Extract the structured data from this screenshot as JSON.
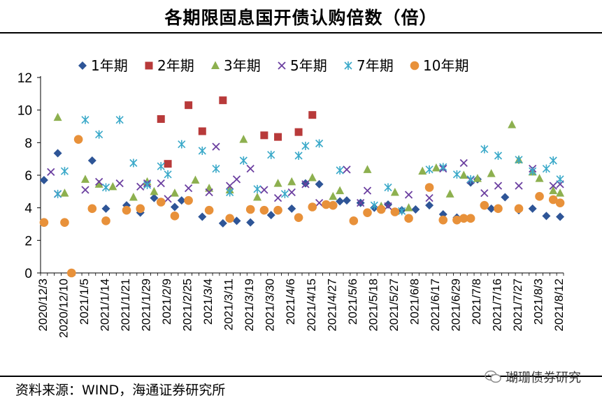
{
  "title": "各期限固息国开债认购倍数（倍）",
  "source": "资料来源：WIND，海通证券研究所",
  "watermark": "瑚珊债券研究",
  "chart_data": {
    "type": "scatter",
    "title": "各期限固息国开债认购倍数（倍）",
    "ylim": [
      0,
      12
    ],
    "yticks": [
      0,
      2,
      4,
      6,
      8,
      10,
      12
    ],
    "x_count": 76,
    "xtick_labels": [
      "2020/12/3",
      "2020/12/10",
      "2021/1/5",
      "2021/1/14",
      "2021/1/21",
      "2021/1/29",
      "2021/2/9",
      "2021/2/25",
      "2021/3/4",
      "2021/3/11",
      "2021/3/19",
      "2021/3/30",
      "2021/4/6",
      "2021/4/15",
      "2021/4/27",
      "2021/5/6",
      "2021/5/18",
      "2021/5/27",
      "2021/6/8",
      "2021/6/17",
      "2021/6/29",
      "2021/7/8",
      "2021/7/16",
      "2021/7/27",
      "2021/8/3",
      "2021/8/12"
    ],
    "legend_position": "top",
    "series": [
      {
        "name": "1年期",
        "marker": "diamond",
        "color": "#2E5597",
        "points": [
          [
            0,
            5.7
          ],
          [
            2,
            7.35
          ],
          [
            7,
            6.9
          ],
          [
            9,
            3.95
          ],
          [
            12,
            4.15
          ],
          [
            14,
            3.7
          ],
          [
            16,
            4.6
          ],
          [
            19,
            4.05
          ],
          [
            20,
            4.45
          ],
          [
            23,
            3.45
          ],
          [
            26,
            3.05
          ],
          [
            28,
            3.2
          ],
          [
            30,
            3.1
          ],
          [
            33,
            3.55
          ],
          [
            36,
            3.95
          ],
          [
            38,
            5.5
          ],
          [
            40,
            5.45
          ],
          [
            43,
            4.4
          ],
          [
            44,
            4.45
          ],
          [
            46,
            4.3
          ],
          [
            48,
            4.0
          ],
          [
            50,
            4.2
          ],
          [
            52,
            3.85
          ],
          [
            54,
            3.9
          ],
          [
            56,
            4.15
          ],
          [
            58,
            3.6
          ],
          [
            60,
            3.4
          ],
          [
            62,
            5.55
          ],
          [
            63,
            5.75
          ],
          [
            65,
            3.95
          ],
          [
            67,
            4.65
          ],
          [
            69,
            3.85
          ],
          [
            71,
            3.95
          ],
          [
            73,
            3.5
          ],
          [
            75,
            3.45
          ]
        ]
      },
      {
        "name": "2年期",
        "marker": "square",
        "color": "#B83A3A",
        "points": [
          [
            17,
            9.45
          ],
          [
            18,
            6.7
          ],
          [
            21,
            10.3
          ],
          [
            23,
            8.7
          ],
          [
            26,
            10.6
          ],
          [
            32,
            8.45
          ],
          [
            34,
            8.35
          ],
          [
            37,
            8.65
          ],
          [
            39,
            9.7
          ]
        ]
      },
      {
        "name": "3年期",
        "marker": "triangle",
        "color": "#8DB04F",
        "points": [
          [
            2,
            9.55
          ],
          [
            3,
            4.9
          ],
          [
            6,
            5.75
          ],
          [
            8,
            5.45
          ],
          [
            10,
            5.3
          ],
          [
            13,
            4.65
          ],
          [
            15,
            5.6
          ],
          [
            16,
            5.0
          ],
          [
            19,
            4.9
          ],
          [
            22,
            5.7
          ],
          [
            24,
            5.2
          ],
          [
            27,
            5.1
          ],
          [
            29,
            8.2
          ],
          [
            31,
            4.65
          ],
          [
            34,
            5.5
          ],
          [
            36,
            5.6
          ],
          [
            39,
            5.85
          ],
          [
            42,
            4.7
          ],
          [
            43,
            5.05
          ],
          [
            47,
            6.35
          ],
          [
            49,
            4.1
          ],
          [
            51,
            4.95
          ],
          [
            53,
            4.0
          ],
          [
            55,
            6.25
          ],
          [
            57,
            6.45
          ],
          [
            59,
            4.85
          ],
          [
            61,
            6.0
          ],
          [
            63,
            5.8
          ],
          [
            65,
            6.1
          ],
          [
            68,
            9.1
          ],
          [
            69,
            6.95
          ],
          [
            71,
            6.2
          ],
          [
            72,
            5.8
          ],
          [
            74,
            5.05
          ],
          [
            75,
            4.9
          ]
        ]
      },
      {
        "name": "5年期",
        "marker": "cross",
        "color": "#6B3FA0",
        "points": [
          [
            1,
            6.2
          ],
          [
            2,
            4.85
          ],
          [
            6,
            5.1
          ],
          [
            8,
            5.6
          ],
          [
            11,
            5.5
          ],
          [
            14,
            5.3
          ],
          [
            15,
            5.5
          ],
          [
            17,
            5.5
          ],
          [
            18,
            4.55
          ],
          [
            21,
            5.2
          ],
          [
            24,
            4.95
          ],
          [
            25,
            7.75
          ],
          [
            27,
            5.35
          ],
          [
            28,
            5.75
          ],
          [
            30,
            6.4
          ],
          [
            32,
            5.1
          ],
          [
            34,
            4.6
          ],
          [
            36,
            4.95
          ],
          [
            38,
            5.45
          ],
          [
            40,
            4.3
          ],
          [
            44,
            6.35
          ],
          [
            46,
            4.3
          ],
          [
            47,
            5.05
          ],
          [
            50,
            4.1
          ],
          [
            53,
            4.8
          ],
          [
            56,
            4.6
          ],
          [
            58,
            6.4
          ],
          [
            61,
            6.75
          ],
          [
            62,
            5.7
          ],
          [
            64,
            4.9
          ],
          [
            66,
            5.35
          ],
          [
            69,
            5.35
          ],
          [
            71,
            6.4
          ],
          [
            74,
            5.35
          ],
          [
            75,
            5.45
          ]
        ]
      },
      {
        "name": "7年期",
        "marker": "star",
        "color": "#3AA9C9",
        "points": [
          [
            2,
            4.85
          ],
          [
            3,
            6.25
          ],
          [
            6,
            9.4
          ],
          [
            8,
            8.5
          ],
          [
            9,
            5.25
          ],
          [
            11,
            9.4
          ],
          [
            13,
            6.75
          ],
          [
            15,
            5.4
          ],
          [
            17,
            6.55
          ],
          [
            18,
            6.05
          ],
          [
            20,
            7.9
          ],
          [
            23,
            7.5
          ],
          [
            25,
            6.4
          ],
          [
            27,
            4.95
          ],
          [
            29,
            6.9
          ],
          [
            31,
            5.15
          ],
          [
            33,
            7.25
          ],
          [
            35,
            4.85
          ],
          [
            37,
            7.2
          ],
          [
            38,
            7.8
          ],
          [
            40,
            7.95
          ],
          [
            43,
            6.3
          ],
          [
            48,
            4.15
          ],
          [
            50,
            5.25
          ],
          [
            52,
            3.8
          ],
          [
            56,
            6.35
          ],
          [
            58,
            6.5
          ],
          [
            60,
            6.05
          ],
          [
            62,
            5.75
          ],
          [
            64,
            7.6
          ],
          [
            66,
            7.2
          ],
          [
            69,
            6.95
          ],
          [
            71,
            6.25
          ],
          [
            73,
            6.4
          ],
          [
            74,
            6.9
          ],
          [
            75,
            5.75
          ]
        ]
      },
      {
        "name": "10年期",
        "marker": "circle",
        "color": "#E8913A",
        "points": [
          [
            0,
            3.1
          ],
          [
            3,
            3.1
          ],
          [
            4,
            0.0
          ],
          [
            5,
            8.2
          ],
          [
            7,
            3.95
          ],
          [
            9,
            3.2
          ],
          [
            12,
            3.85
          ],
          [
            14,
            3.95
          ],
          [
            17,
            4.35
          ],
          [
            19,
            3.5
          ],
          [
            21,
            4.45
          ],
          [
            24,
            3.85
          ],
          [
            27,
            3.35
          ],
          [
            30,
            3.9
          ],
          [
            32,
            3.85
          ],
          [
            34,
            3.85
          ],
          [
            37,
            3.4
          ],
          [
            39,
            4.05
          ],
          [
            41,
            4.2
          ],
          [
            42,
            4.15
          ],
          [
            45,
            3.2
          ],
          [
            47,
            3.7
          ],
          [
            49,
            3.9
          ],
          [
            51,
            3.75
          ],
          [
            53,
            3.35
          ],
          [
            56,
            5.25
          ],
          [
            58,
            3.25
          ],
          [
            60,
            3.25
          ],
          [
            61,
            3.35
          ],
          [
            62,
            3.35
          ],
          [
            64,
            4.15
          ],
          [
            66,
            3.95
          ],
          [
            69,
            3.95
          ],
          [
            72,
            4.7
          ],
          [
            74,
            4.5
          ],
          [
            75,
            4.3
          ]
        ]
      }
    ]
  }
}
